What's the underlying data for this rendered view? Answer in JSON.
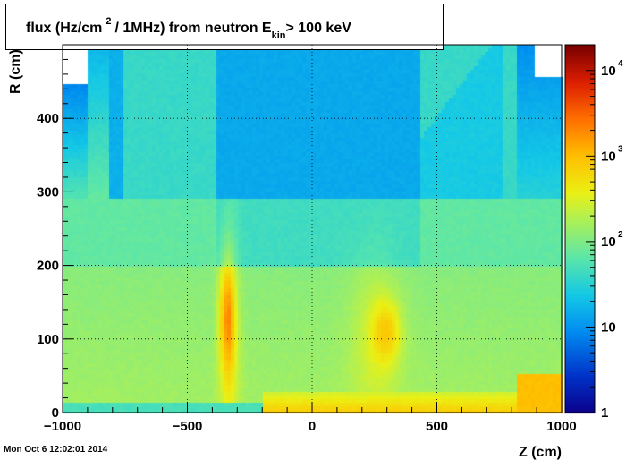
{
  "chart_data": {
    "type": "heatmap",
    "title": {
      "part1": "flux (Hz/cm",
      "superscript": "2",
      "part2": "/ 1MHz) from   neutron  E",
      "subscript": "kin",
      "part3": "> 100 keV"
    },
    "xlabel": "Z (cm)",
    "ylabel": "R (cm)",
    "xlim": [
      -1000,
      1000
    ],
    "ylim": [
      0,
      500
    ],
    "x_ticks": [
      "−1000",
      "−500",
      "0",
      "500",
      "1000"
    ],
    "x_tick_values": [
      -1000,
      -500,
      0,
      500,
      1000
    ],
    "y_ticks": [
      "0",
      "100",
      "200",
      "300",
      "400"
    ],
    "y_tick_values": [
      0,
      100,
      200,
      300,
      400
    ],
    "colorbar": {
      "scale": "log",
      "range": [
        1,
        20000
      ],
      "labels": [
        {
          "value": 1,
          "base": "1",
          "exp": ""
        },
        {
          "value": 10,
          "base": "10",
          "exp": ""
        },
        {
          "value": 100,
          "base": "10",
          "exp": "2"
        },
        {
          "value": 1000,
          "base": "10",
          "exp": "3"
        },
        {
          "value": 10000,
          "base": "10",
          "exp": "4"
        }
      ]
    },
    "grid": true
  },
  "timestamp": "Mon Oct  6 12:02:01 2014"
}
